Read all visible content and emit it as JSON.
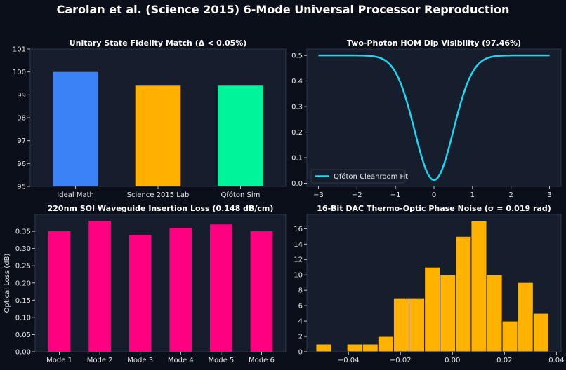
{
  "figure_title": "Carolan et al. (Science 2015) 6-Mode Universal Processor Reproduction",
  "colors": {
    "background": "#0b0f19",
    "panel": "#161e2e",
    "spine": "#2c3547",
    "text": "#ffffff",
    "tick_text": "#e6e8ec",
    "blue": "#3b82f6",
    "amber": "#ffb000",
    "green": "#00f59b",
    "pink": "#ff0080",
    "cyan": "#1fd6f0",
    "hist": "#ffb300"
  },
  "chart_data": [
    {
      "type": "bar",
      "title": "Unitary State Fidelity Match (Δ < 0.05%)",
      "categories": [
        "Ideal Math",
        "Science 2015 Lab",
        "Qfóton Sim"
      ],
      "values": [
        100.0,
        99.4,
        99.4
      ],
      "bar_colors": [
        "#3b82f6",
        "#ffb000",
        "#00f59b"
      ],
      "ylim": [
        95,
        101
      ],
      "yticks": [
        "95",
        "96",
        "97",
        "98",
        "99",
        "100",
        "101"
      ],
      "xlabel": "",
      "ylabel": "",
      "grid": false
    },
    {
      "type": "line",
      "title": "Two-Photon HOM Dip Visibility (97.46%)",
      "series": [
        {
          "name": "Qfóton Cleanroom Fit",
          "color": "#1fd6f0"
        }
      ],
      "x_range": [
        -3,
        3
      ],
      "curve": {
        "baseline": 0.5,
        "min": 0.0127,
        "sigma": 0.5
      },
      "xlim": [
        -3.3,
        3.3
      ],
      "ylim": [
        -0.012,
        0.525
      ],
      "xticks": [
        "−3",
        "−2",
        "−1",
        "0",
        "1",
        "2",
        "3"
      ],
      "yticks": [
        "0.0",
        "0.1",
        "0.2",
        "0.3",
        "0.4",
        "0.5"
      ],
      "legend": "lower-left",
      "xlabel": "",
      "ylabel": "",
      "grid": false
    },
    {
      "type": "bar",
      "title": "220nm SOI Waveguide Insertion Loss (0.148 dB/cm)",
      "categories": [
        "Mode 1",
        "Mode 2",
        "Mode 3",
        "Mode 4",
        "Mode 5",
        "Mode 6"
      ],
      "values": [
        0.35,
        0.38,
        0.34,
        0.36,
        0.37,
        0.35
      ],
      "bar_colors": [
        "#ff0080",
        "#ff0080",
        "#ff0080",
        "#ff0080",
        "#ff0080",
        "#ff0080"
      ],
      "ylim": [
        0,
        0.399
      ],
      "yticks": [
        "0.00",
        "0.05",
        "0.10",
        "0.15",
        "0.20",
        "0.25",
        "0.30",
        "0.35"
      ],
      "ylabel": "Optical Loss (dB)",
      "xlabel": "",
      "grid": false
    },
    {
      "type": "histogram",
      "title": "16-Bit DAC Thermo-Optic Phase Noise (σ = 0.019 rad)",
      "bin_start": -0.0525,
      "bin_width": 0.00597,
      "counts": [
        1,
        0,
        1,
        1,
        2,
        7,
        7,
        11,
        10,
        15,
        17,
        10,
        4,
        9,
        5
      ],
      "xlim": [
        -0.056,
        0.0418
      ],
      "ylim": [
        0,
        17.85
      ],
      "xticks": [
        "−0.04",
        "−0.02",
        "0.00",
        "0.02",
        "0.04"
      ],
      "yticks": [
        "0",
        "2",
        "4",
        "6",
        "8",
        "10",
        "12",
        "14",
        "16"
      ],
      "xlabel": "",
      "ylabel": "",
      "grid": false
    }
  ]
}
